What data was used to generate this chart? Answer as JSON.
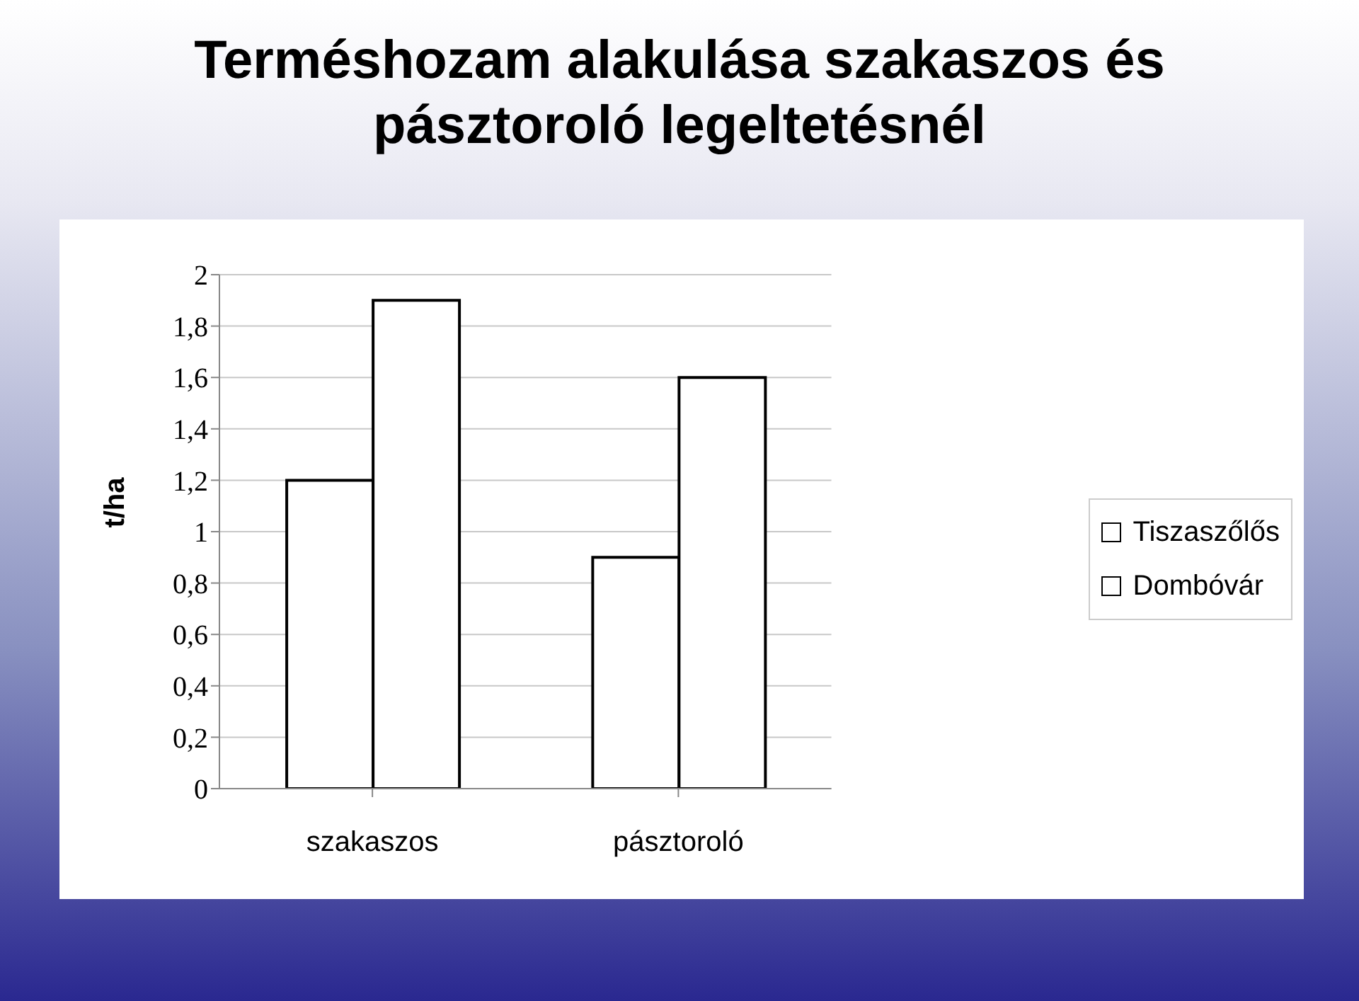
{
  "chart_data": {
    "type": "bar",
    "title": "Terméshozam alakulása szakaszos és pásztoroló legeltetésnél",
    "ylabel": "t/ha",
    "categories": [
      "szakaszos",
      "pásztoroló"
    ],
    "series": [
      {
        "name": "Tiszaszőlős",
        "color": "#ffffff",
        "values": [
          1.2,
          0.9
        ]
      },
      {
        "name": "Dombóvár",
        "color": "#ffffff",
        "values": [
          1.9,
          1.6
        ]
      }
    ],
    "ylim": [
      0,
      2
    ],
    "yticks": [
      0,
      {
        "value": 0.2,
        "label": "0,2"
      },
      {
        "value": 0.4,
        "label": "0,4"
      },
      {
        "value": 0.6,
        "label": "0,6"
      },
      {
        "value": 0.8,
        "label": "0,8"
      },
      1,
      {
        "value": 1.2,
        "label": "1,2"
      },
      {
        "value": 1.4,
        "label": "1,4"
      },
      {
        "value": 1.6,
        "label": "1,6"
      },
      {
        "value": 1.8,
        "label": "1,8"
      },
      2
    ],
    "grid": "y",
    "legend": "right"
  }
}
